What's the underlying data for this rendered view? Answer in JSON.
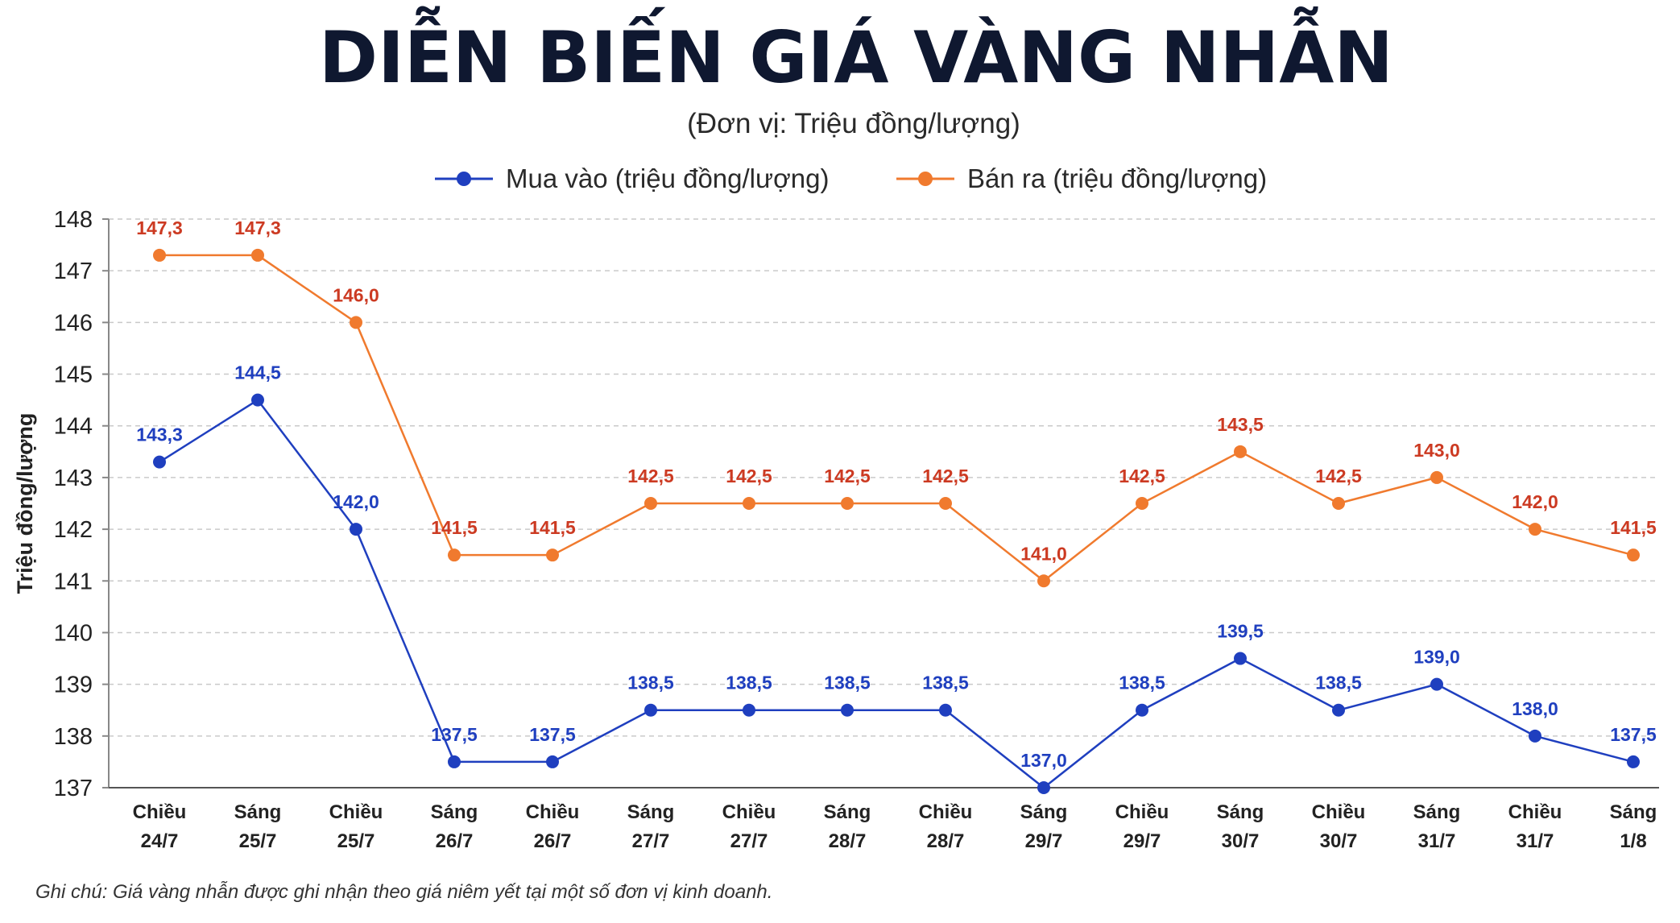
{
  "chart_data": {
    "type": "line",
    "title": "DIỄN BIẾN GIÁ VÀNG NHẪN",
    "subtitle": "(Đơn vị: Triệu đồng/lượng)",
    "ylabel": "Triệu đồng/lượng",
    "xlabel": "",
    "ylim": [
      137,
      148
    ],
    "yticks": [
      "148",
      "147",
      "146",
      "145",
      "144",
      "143",
      "142",
      "141",
      "140",
      "139",
      "138",
      "137"
    ],
    "ytick_values": [
      148,
      147,
      146,
      145,
      144,
      143,
      142,
      141,
      140,
      139,
      138,
      137
    ],
    "grid": "horizontal dashed",
    "legend_position": "top-center",
    "categories": [
      [
        "Chiều",
        "24/7"
      ],
      [
        "Sáng",
        "25/7"
      ],
      [
        "Chiều",
        "25/7"
      ],
      [
        "Sáng",
        "26/7"
      ],
      [
        "Chiều",
        "26/7"
      ],
      [
        "Sáng",
        "27/7"
      ],
      [
        "Chiều",
        "27/7"
      ],
      [
        "Sáng",
        "28/7"
      ],
      [
        "Chiều",
        "28/7"
      ],
      [
        "Sáng",
        "29/7"
      ],
      [
        "Chiều",
        "29/7"
      ],
      [
        "Sáng",
        "30/7"
      ],
      [
        "Chiều",
        "30/7"
      ],
      [
        "Sáng",
        "31/7"
      ],
      [
        "Chiều",
        "31/7"
      ],
      [
        "Sáng",
        "1/8"
      ]
    ],
    "series": [
      {
        "name": "Mua vào (triệu đồng/lượng)",
        "color": "#1f3fbf",
        "values": [
          143.3,
          144.5,
          142.0,
          137.5,
          137.5,
          138.5,
          138.5,
          138.5,
          138.5,
          137.0,
          138.5,
          139.5,
          138.5,
          139.0,
          138.0,
          137.5
        ],
        "labels": [
          "143,3",
          "144,5",
          "142,0",
          "137,5",
          "137,5",
          "138,5",
          "138,5",
          "138,5",
          "138,5",
          "137,0",
          "138,5",
          "139,5",
          "138,5",
          "139,0",
          "138,0",
          "137,5"
        ]
      },
      {
        "name": "Bán ra (triệu đồng/lượng)",
        "color": "#f07a2e",
        "label_color": "#cc3a22",
        "values": [
          147.3,
          147.3,
          146.0,
          141.5,
          141.5,
          142.5,
          142.5,
          142.5,
          142.5,
          141.0,
          142.5,
          143.5,
          142.5,
          143.0,
          142.0,
          141.5
        ],
        "labels": [
          "147,3",
          "147,3",
          "146,0",
          "141,5",
          "141,5",
          "142,5",
          "142,5",
          "142,5",
          "142,5",
          "141,0",
          "142,5",
          "143,5",
          "142,5",
          "143,0",
          "142,0",
          "141,5"
        ]
      }
    ],
    "note": "Ghi chú: Giá vàng nhẫn được ghi nhận theo giá niêm yết tại một số đơn vị kinh doanh."
  }
}
